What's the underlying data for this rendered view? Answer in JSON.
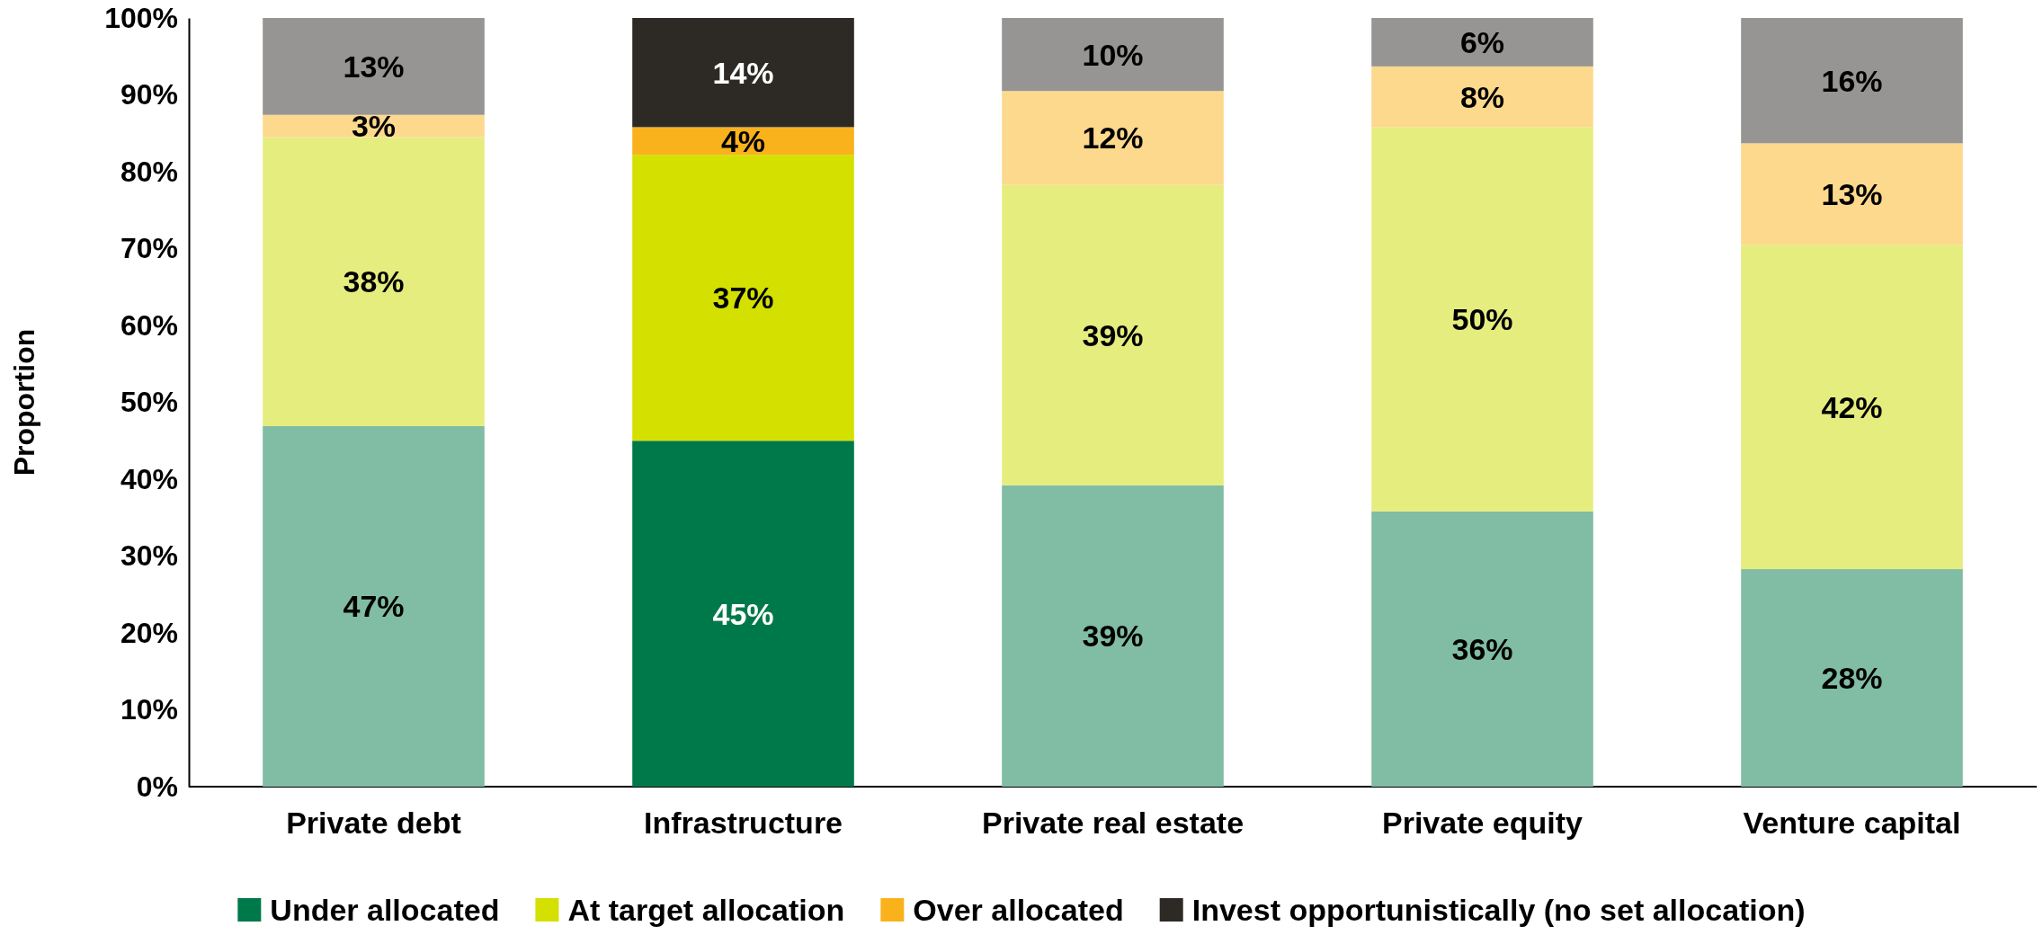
{
  "chart_data": {
    "type": "bar",
    "stacked": true,
    "ylabel": "Proportion",
    "categories": [
      "Private debt",
      "Infrastructure",
      "Private real estate",
      "Private equity",
      "Venture capital"
    ],
    "ylim": [
      0,
      100
    ],
    "yticks": [
      {
        "value": 0,
        "label": "0%"
      },
      {
        "value": 10,
        "label": "10%"
      },
      {
        "value": 20,
        "label": "20%"
      },
      {
        "value": 30,
        "label": "30%"
      },
      {
        "value": 40,
        "label": "40%"
      },
      {
        "value": 50,
        "label": "50%"
      },
      {
        "value": 60,
        "label": "60%"
      },
      {
        "value": 70,
        "label": "70%"
      },
      {
        "value": 80,
        "label": "80%"
      },
      {
        "value": 90,
        "label": "90%"
      },
      {
        "value": 100,
        "label": "100%"
      }
    ],
    "grid": false,
    "legend": "bottom",
    "series": [
      {
        "name": "Under allocated",
        "color": "#00794a",
        "colors": [
          "#80bda4",
          "#00794a",
          "#80bda4",
          "#80bda4",
          "#80bda4"
        ],
        "values": [
          46.9,
          45,
          39.2,
          35.8,
          28.3
        ],
        "value_labels": [
          "47%",
          "45%",
          "39%",
          "36%",
          "28%"
        ]
      },
      {
        "name": "At target allocation",
        "color": "#d4e000",
        "colors": [
          "#e6ed7f",
          "#d4e000",
          "#e6ed7f",
          "#e6ed7f",
          "#e6ed7f"
        ],
        "values": [
          37.6,
          37.2,
          39.1,
          50,
          42.2
        ],
        "value_labels": [
          "38%",
          "37%",
          "39%",
          "50%",
          "42%"
        ]
      },
      {
        "name": "Over allocated",
        "color": "#f9b21c",
        "colors": [
          "#fcd98d",
          "#f9b21c",
          "#fcd98d",
          "#fcd98d",
          "#fcd98d"
        ],
        "values": [
          2.9,
          3.6,
          12.2,
          7.9,
          13.2
        ],
        "value_labels": [
          "3%",
          "4%",
          "12%",
          "8%",
          "13%"
        ]
      },
      {
        "name": "Invest opportunistically (no set allocation)",
        "color": "#2d2a26",
        "colors": [
          "#969593",
          "#2d2a26",
          "#969593",
          "#969593",
          "#969593"
        ],
        "values": [
          12.6,
          14.2,
          9.5,
          6.3,
          16.3
        ],
        "value_labels": [
          "13%",
          "14%",
          "10%",
          "6%",
          "16%"
        ]
      }
    ]
  }
}
